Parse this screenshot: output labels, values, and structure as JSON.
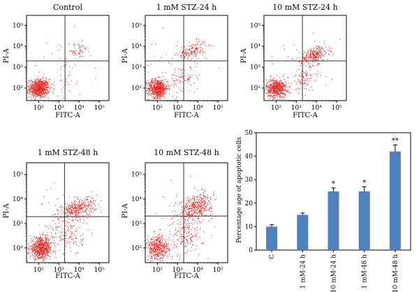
{
  "chart_data": [
    {
      "type": "scatter",
      "title": "Control",
      "xlabel": "FITC-A",
      "ylabel": "PI-A",
      "scale": "log",
      "xlim": [
        25,
        300000
      ],
      "ylim": [
        25,
        300000
      ],
      "x_ticks": [
        "10²",
        "10³",
        "10⁴",
        "10⁵"
      ],
      "y_ticks": [
        "10²",
        "10³",
        "10⁴",
        "10⁵"
      ],
      "gate": {
        "x": 2000,
        "y": 2000
      },
      "dot_color": "#e8231f",
      "populations": [
        {
          "name": "live",
          "count": 700,
          "cx": 2.0,
          "cy": 2.0,
          "sx": 0.25,
          "sy": 0.22
        },
        {
          "name": "late",
          "count": 60,
          "cx": 3.9,
          "cy": 3.8,
          "sx": 0.3,
          "sy": 0.2
        },
        {
          "name": "early",
          "count": 25,
          "cx": 3.4,
          "cy": 2.3,
          "sx": 0.3,
          "sy": 0.3
        },
        {
          "name": "sparse",
          "count": 25,
          "cx": 3.0,
          "cy": 3.0,
          "sx": 0.8,
          "sy": 0.8
        }
      ]
    },
    {
      "type": "scatter",
      "title": "1 mM STZ-24 h",
      "xlabel": "FITC-A",
      "ylabel": "PI-A",
      "scale": "log",
      "xlim": [
        25,
        300000
      ],
      "ylim": [
        25,
        300000
      ],
      "x_ticks": [
        "10²",
        "10³",
        "10⁴",
        "10⁵"
      ],
      "y_ticks": [
        "10²",
        "10³",
        "10⁴",
        "10⁵"
      ],
      "gate": {
        "x": 2000,
        "y": 2000
      },
      "dot_color": "#e8231f",
      "populations": [
        {
          "name": "live",
          "count": 600,
          "cx": 2.0,
          "cy": 2.0,
          "sx": 0.25,
          "sy": 0.22
        },
        {
          "name": "late",
          "count": 150,
          "cx": 3.7,
          "cy": 3.8,
          "sx": 0.35,
          "sy": 0.2
        },
        {
          "name": "early",
          "count": 60,
          "cx": 3.3,
          "cy": 2.4,
          "sx": 0.35,
          "sy": 0.35
        },
        {
          "name": "sparse",
          "count": 40,
          "cx": 3.0,
          "cy": 3.0,
          "sx": 0.8,
          "sy": 0.8
        }
      ]
    },
    {
      "type": "scatter",
      "title": "10 mM STZ-24 h",
      "xlabel": "FITC-A",
      "ylabel": "PI-A",
      "scale": "log",
      "xlim": [
        25,
        300000
      ],
      "ylim": [
        25,
        300000
      ],
      "x_ticks": [
        "10²",
        "10³",
        "10⁴",
        "10⁵"
      ],
      "y_ticks": [
        "10²",
        "10³",
        "10⁴",
        "10⁵"
      ],
      "gate": {
        "x": 2000,
        "y": 2000
      },
      "dot_color": "#e8231f",
      "populations": [
        {
          "name": "live",
          "count": 550,
          "cx": 2.0,
          "cy": 2.0,
          "sx": 0.25,
          "sy": 0.22
        },
        {
          "name": "late",
          "count": 250,
          "cx": 3.9,
          "cy": 3.6,
          "sx": 0.35,
          "sy": 0.2
        },
        {
          "name": "early",
          "count": 90,
          "cx": 3.4,
          "cy": 2.5,
          "sx": 0.35,
          "sy": 0.35
        },
        {
          "name": "sparse",
          "count": 40,
          "cx": 3.0,
          "cy": 3.0,
          "sx": 0.8,
          "sy": 0.8
        }
      ]
    },
    {
      "type": "scatter",
      "title": "1 mM STZ-48 h",
      "xlabel": "FITC-A",
      "ylabel": "PI-A",
      "scale": "log",
      "xlim": [
        25,
        300000
      ],
      "ylim": [
        25,
        300000
      ],
      "x_ticks": [
        "10²",
        "10³",
        "10⁴",
        "10⁵"
      ],
      "y_ticks": [
        "10²",
        "10³",
        "10⁴",
        "10⁵"
      ],
      "gate": {
        "x": 1900,
        "y": 1900
      },
      "dot_color": "#e8231f",
      "populations": [
        {
          "name": "live",
          "count": 650,
          "cx": 2.1,
          "cy": 2.0,
          "sx": 0.28,
          "sy": 0.22
        },
        {
          "name": "late",
          "count": 350,
          "cx": 3.9,
          "cy": 3.6,
          "sx": 0.45,
          "sy": 0.2
        },
        {
          "name": "early",
          "count": 120,
          "cx": 3.4,
          "cy": 2.5,
          "sx": 0.4,
          "sy": 0.4
        },
        {
          "name": "sparse",
          "count": 50,
          "cx": 3.0,
          "cy": 3.0,
          "sx": 0.8,
          "sy": 0.8
        }
      ]
    },
    {
      "type": "scatter",
      "title": "10 mM STZ-48 h",
      "xlabel": "FITC-A",
      "ylabel": "PI-A",
      "scale": "log",
      "xlim": [
        25,
        300000
      ],
      "ylim": [
        25,
        300000
      ],
      "x_ticks": [
        "10²",
        "10³",
        "10⁴",
        "10⁵"
      ],
      "y_ticks": [
        "10²",
        "10³",
        "10⁴",
        "10⁵"
      ],
      "gate": {
        "x": 2000,
        "y": 2000
      },
      "dot_color": "#e8231f",
      "populations": [
        {
          "name": "live",
          "count": 420,
          "cx": 2.0,
          "cy": 2.0,
          "sx": 0.28,
          "sy": 0.25
        },
        {
          "name": "late",
          "count": 380,
          "cx": 3.9,
          "cy": 3.7,
          "sx": 0.4,
          "sy": 0.25
        },
        {
          "name": "early",
          "count": 140,
          "cx": 3.4,
          "cy": 2.5,
          "sx": 0.4,
          "sy": 0.4
        },
        {
          "name": "sparse",
          "count": 50,
          "cx": 3.0,
          "cy": 3.0,
          "sx": 0.8,
          "sy": 0.8
        }
      ]
    },
    {
      "type": "bar",
      "ylabel": "Percentage age of apoptotic cells",
      "categories": [
        "C",
        "1 mM-24 h",
        "10 mM-24 h",
        "1 mM-48 h",
        "10 mM-48 h"
      ],
      "values": [
        10,
        15,
        25,
        25,
        42
      ],
      "errors": [
        0.8,
        0.8,
        1.5,
        2.0,
        2.8
      ],
      "annotations": [
        "",
        "",
        "*",
        "*",
        "**"
      ],
      "ylim": [
        0,
        50
      ],
      "yticks": [
        0,
        10,
        20,
        30,
        40,
        50
      ],
      "bar_color": "#4f81bd"
    }
  ]
}
